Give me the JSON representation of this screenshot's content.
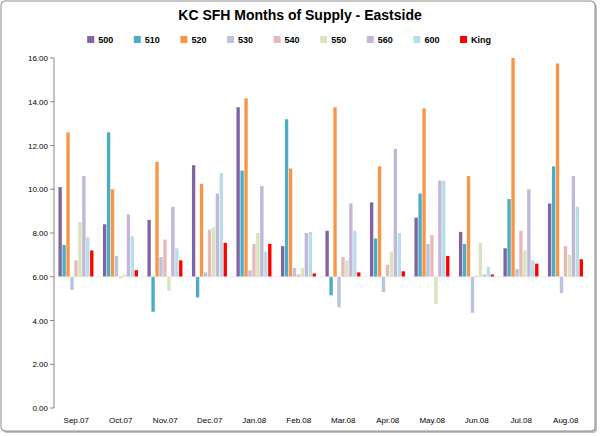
{
  "chart_data": {
    "type": "bar",
    "title": "KC SFH Months of Supply - Eastside",
    "categories": [
      "Sep.07",
      "Oct.07",
      "Nov.07",
      "Dec.07",
      "Jan.08",
      "Feb.08",
      "Mar.08",
      "Apr.08",
      "May.08",
      "Jun.08",
      "Jul.08",
      "Aug.08"
    ],
    "series": [
      {
        "name": "500",
        "color": "#8064a2",
        "values": [
          10.1,
          8.4,
          8.6,
          11.1,
          13.75,
          7.4,
          8.1,
          9.4,
          8.7,
          8.05,
          7.3,
          9.35
        ]
      },
      {
        "name": "510",
        "color": "#4bacc6",
        "values": [
          7.45,
          12.6,
          4.4,
          5.05,
          10.85,
          13.2,
          5.15,
          7.75,
          9.8,
          7.5,
          9.55,
          11.05
        ]
      },
      {
        "name": "520",
        "color": "#f79646",
        "values": [
          12.6,
          10.0,
          11.25,
          10.25,
          14.15,
          10.95,
          13.75,
          11.05,
          13.7,
          10.6,
          16.0,
          15.75
        ]
      },
      {
        "name": "530",
        "color": "#b9c3dc",
        "values": [
          5.4,
          6.95,
          6.9,
          6.2,
          6.3,
          6.4,
          4.6,
          5.3,
          7.5,
          4.35,
          6.35,
          5.25
        ]
      },
      {
        "name": "540",
        "color": "#e6b9b8",
        "values": [
          6.75,
          5.95,
          7.7,
          8.15,
          7.5,
          6.1,
          6.9,
          6.55,
          7.9,
          6.05,
          8.1,
          7.4
        ]
      },
      {
        "name": "550",
        "color": "#d7e4bd",
        "values": [
          8.5,
          6.1,
          5.35,
          8.25,
          8.0,
          6.4,
          6.75,
          7.15,
          4.75,
          7.55,
          7.2,
          7.0
        ]
      },
      {
        "name": "560",
        "color": "#c3b6d8",
        "values": [
          10.6,
          8.85,
          9.2,
          9.8,
          10.15,
          8.0,
          9.35,
          11.85,
          10.4,
          6.1,
          10.0,
          10.6
        ]
      },
      {
        "name": "600",
        "color": "#b7dee8",
        "values": [
          7.8,
          7.85,
          7.3,
          10.75,
          7.15,
          8.05,
          8.1,
          8.0,
          10.4,
          6.45,
          6.75,
          9.2
        ]
      },
      {
        "name": "King",
        "color": "#ff0000",
        "values": [
          7.2,
          6.3,
          6.75,
          7.55,
          7.5,
          6.15,
          6.2,
          6.25,
          6.95,
          6.1,
          6.6,
          6.8
        ]
      }
    ],
    "baseline": 6,
    "ylim": [
      0,
      16
    ],
    "yticks": [
      {
        "value": 0,
        "label": "0.00"
      },
      {
        "value": 2,
        "label": "2.00"
      },
      {
        "value": 4,
        "label": "4.00"
      },
      {
        "value": 6,
        "label": "6.00"
      },
      {
        "value": 8,
        "label": "8.00"
      },
      {
        "value": 10,
        "label": "10.00"
      },
      {
        "value": 12,
        "label": "12.00"
      },
      {
        "value": 14,
        "label": "14.00"
      },
      {
        "value": 16,
        "label": "16.00"
      }
    ],
    "grid": false,
    "legend": "top"
  }
}
